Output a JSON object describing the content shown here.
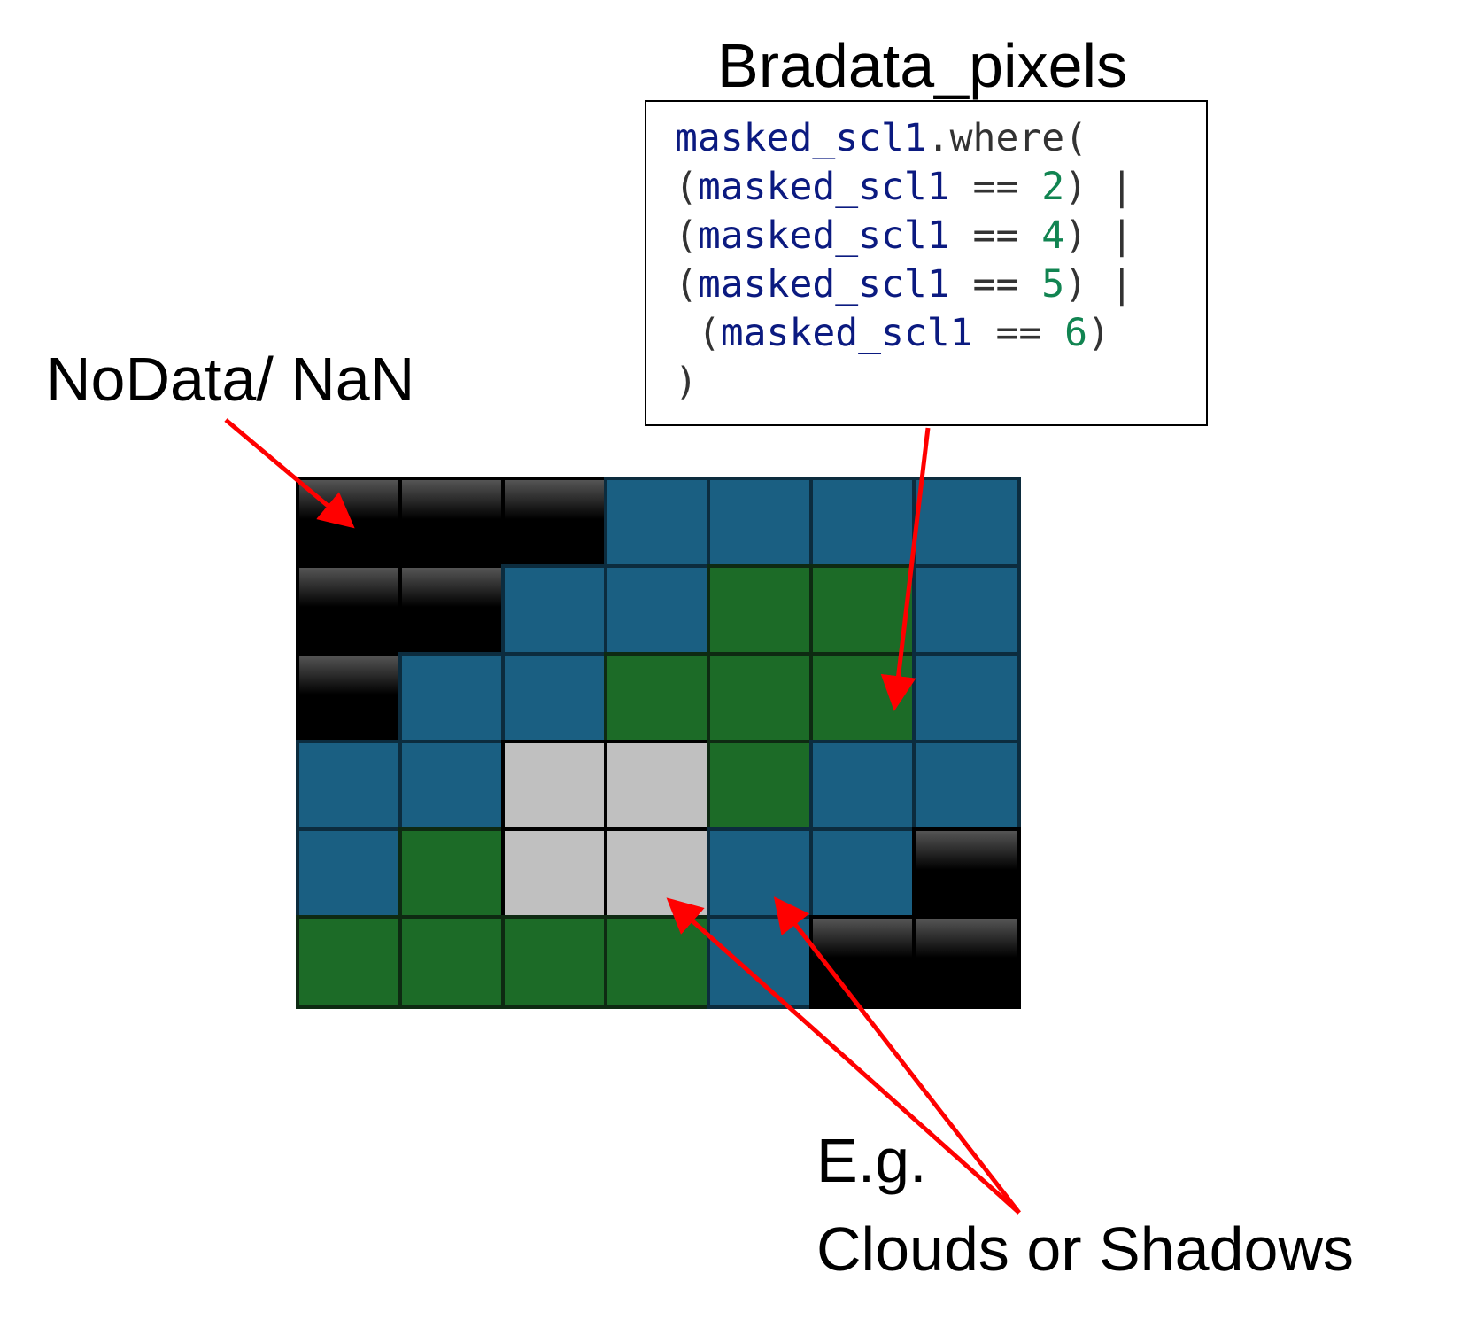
{
  "title": "Bradata_pixels",
  "nodata_label": "NoData/ NaN",
  "example_label": "E.g.",
  "clouds_label": "Clouds or Shadows",
  "code": {
    "lines": [
      [
        {
          "t": "masked_scl1",
          "c": "var"
        },
        {
          "t": ".where(",
          "c": "op"
        }
      ],
      [
        {
          "t": "(",
          "c": "op"
        },
        {
          "t": "masked_scl1",
          "c": "var"
        },
        {
          "t": " == ",
          "c": "op"
        },
        {
          "t": "2",
          "c": "num"
        },
        {
          "t": ") |",
          "c": "op"
        }
      ],
      [
        {
          "t": "(",
          "c": "op"
        },
        {
          "t": "masked_scl1",
          "c": "var"
        },
        {
          "t": " == ",
          "c": "op"
        },
        {
          "t": "4",
          "c": "num"
        },
        {
          "t": ") |",
          "c": "op"
        }
      ],
      [
        {
          "t": "(",
          "c": "op"
        },
        {
          "t": "masked_scl1",
          "c": "var"
        },
        {
          "t": " == ",
          "c": "op"
        },
        {
          "t": "5",
          "c": "num"
        },
        {
          "t": ") |",
          "c": "op"
        }
      ],
      [
        {
          "t": " (",
          "c": "op"
        },
        {
          "t": "masked_scl1",
          "c": "var"
        },
        {
          "t": " == ",
          "c": "op"
        },
        {
          "t": "6",
          "c": "num"
        },
        {
          "t": ")",
          "c": "op"
        }
      ],
      [
        {
          "t": ")",
          "c": "op"
        }
      ]
    ]
  },
  "grid": {
    "rows": [
      [
        "nodata",
        "nodata",
        "nodata",
        "water",
        "water",
        "water",
        "water"
      ],
      [
        "nodata",
        "nodata",
        "water",
        "water",
        "veg",
        "veg",
        "water"
      ],
      [
        "nodata",
        "water",
        "water",
        "veg",
        "veg",
        "veg",
        "water"
      ],
      [
        "water",
        "water",
        "cloud",
        "cloud",
        "veg",
        "water",
        "water"
      ],
      [
        "water",
        "veg",
        "cloud",
        "cloud",
        "water",
        "water",
        "nodata"
      ],
      [
        "veg",
        "veg",
        "veg",
        "veg",
        "water",
        "nodata",
        "nodata"
      ]
    ]
  },
  "colors": {
    "water": "#1a5f82",
    "vegetation": "#1c6b27",
    "cloud": "#c0c0c0",
    "nodata": "#000000",
    "arrow": "#ff0000"
  }
}
